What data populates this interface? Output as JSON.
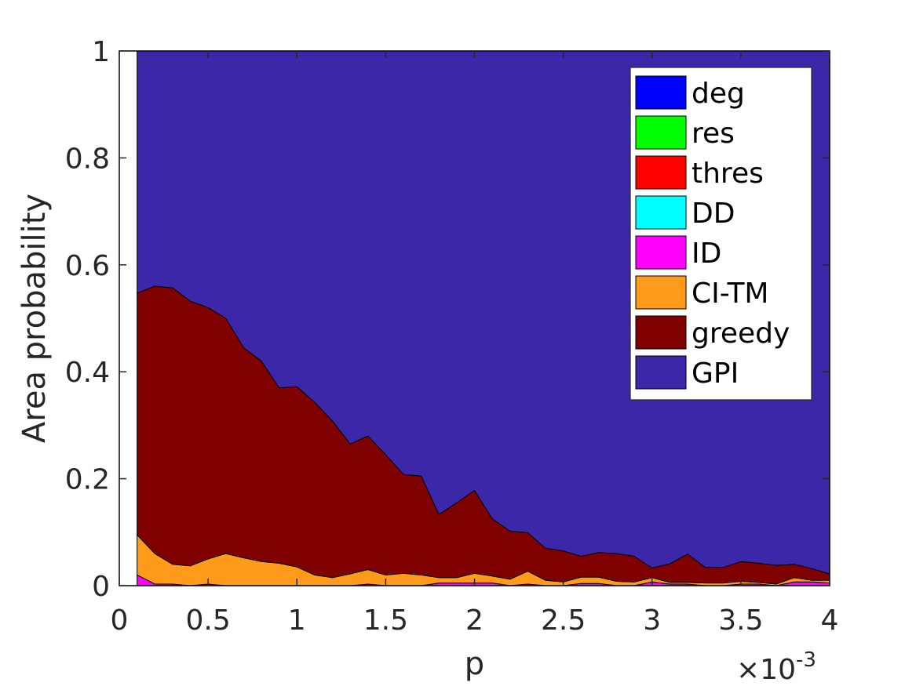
{
  "chart_data": {
    "type": "area",
    "stacked": true,
    "xlabel": "p",
    "ylabel": "Area probability",
    "x_exponent_label": "×10",
    "x_exponent_power": "-3",
    "xlim": [
      0,
      4
    ],
    "ylim": [
      0,
      1
    ],
    "x_ticks": [
      0,
      0.5,
      1,
      1.5,
      2,
      2.5,
      3,
      3.5,
      4
    ],
    "x_tick_labels": [
      "0",
      "0.5",
      "1",
      "1.5",
      "2",
      "2.5",
      "3",
      "3.5",
      "4"
    ],
    "y_ticks": [
      0,
      0.2,
      0.4,
      0.6,
      0.8,
      1
    ],
    "y_tick_labels": [
      "0",
      "0.2",
      "0.4",
      "0.6",
      "0.8",
      "1"
    ],
    "grid": false,
    "legend_position": "top-right",
    "x": [
      0.1,
      0.2,
      0.3,
      0.4,
      0.5,
      0.6,
      0.7,
      0.8,
      0.9,
      1.0,
      1.1,
      1.2,
      1.3,
      1.4,
      1.5,
      1.6,
      1.7,
      1.8,
      1.9,
      2.0,
      2.1,
      2.2,
      2.3,
      2.4,
      2.5,
      2.6,
      2.7,
      2.8,
      2.9,
      3.0,
      3.1,
      3.2,
      3.3,
      3.4,
      3.5,
      3.6,
      3.7,
      3.8,
      3.9,
      4.0
    ],
    "series": [
      {
        "name": "deg",
        "color": "#0000ff",
        "values": [
          0,
          0,
          0,
          0,
          0,
          0,
          0,
          0,
          0,
          0,
          0,
          0,
          0,
          0,
          0,
          0,
          0,
          0,
          0,
          0,
          0,
          0,
          0,
          0,
          0,
          0,
          0,
          0,
          0,
          0,
          0,
          0,
          0,
          0,
          0,
          0,
          0,
          0,
          0,
          0
        ]
      },
      {
        "name": "res",
        "color": "#00ff00",
        "values": [
          0,
          0,
          0,
          0,
          0,
          0,
          0,
          0,
          0,
          0,
          0,
          0,
          0,
          0,
          0,
          0,
          0,
          0,
          0,
          0,
          0,
          0,
          0,
          0,
          0,
          0,
          0,
          0,
          0,
          0,
          0,
          0,
          0,
          0,
          0,
          0,
          0,
          0,
          0,
          0
        ]
      },
      {
        "name": "thres",
        "color": "#ff0000",
        "values": [
          0,
          0,
          0,
          0,
          0,
          0,
          0,
          0,
          0,
          0,
          0,
          0,
          0,
          0,
          0,
          0,
          0,
          0,
          0,
          0,
          0,
          0,
          0,
          0,
          0,
          0,
          0,
          0,
          0,
          0,
          0,
          0,
          0,
          0,
          0,
          0,
          0,
          0,
          0,
          0
        ]
      },
      {
        "name": "DD",
        "color": "#00ffff",
        "values": [
          0,
          0,
          0,
          0,
          0,
          0,
          0,
          0,
          0,
          0,
          0,
          0,
          0,
          0,
          0,
          0,
          0,
          0,
          0,
          0,
          0,
          0,
          0,
          0,
          0,
          0,
          0,
          0,
          0,
          0,
          0,
          0,
          0,
          0,
          0,
          0,
          0,
          0,
          0,
          0
        ]
      },
      {
        "name": "ID",
        "color": "#ff00ff",
        "values": [
          0.02,
          0.003,
          0.003,
          0,
          0.003,
          0,
          0,
          0,
          0,
          0,
          0,
          0,
          0,
          0.003,
          0,
          0,
          0,
          0.005,
          0.005,
          0.005,
          0.005,
          0,
          0.003,
          0,
          0,
          0.004,
          0.004,
          0,
          0,
          0.007,
          0.003,
          0.003,
          0,
          0,
          0.003,
          0.003,
          0,
          0.007,
          0.007,
          0.005
        ]
      },
      {
        "name": "CI-TM",
        "color": "#ff9a1a",
        "values": [
          0.075,
          0.057,
          0.037,
          0.037,
          0.047,
          0.06,
          0.052,
          0.045,
          0.042,
          0.035,
          0.02,
          0.015,
          0.022,
          0.027,
          0.02,
          0.023,
          0.02,
          0.01,
          0.01,
          0.018,
          0.013,
          0.012,
          0.024,
          0.01,
          0.007,
          0.012,
          0.012,
          0.008,
          0.007,
          0.008,
          0.003,
          0.003,
          0.005,
          0.005,
          0.005,
          0.003,
          0.003,
          0.008,
          0.003,
          0.005
        ]
      },
      {
        "name": "greedy",
        "color": "#800000",
        "values": [
          0.452,
          0.5,
          0.517,
          0.495,
          0.47,
          0.44,
          0.393,
          0.375,
          0.328,
          0.337,
          0.323,
          0.293,
          0.243,
          0.25,
          0.225,
          0.185,
          0.185,
          0.118,
          0.14,
          0.155,
          0.107,
          0.09,
          0.072,
          0.06,
          0.058,
          0.039,
          0.046,
          0.052,
          0.048,
          0.018,
          0.035,
          0.053,
          0.029,
          0.029,
          0.037,
          0.036,
          0.035,
          0.025,
          0.022,
          0.012
        ]
      },
      {
        "name": "GPI",
        "color": "#3b27a8",
        "values": [
          0.453,
          0.44,
          0.443,
          0.468,
          0.48,
          0.5,
          0.555,
          0.58,
          0.63,
          0.628,
          0.657,
          0.692,
          0.735,
          0.72,
          0.755,
          0.792,
          0.795,
          0.867,
          0.845,
          0.822,
          0.875,
          0.898,
          0.901,
          0.93,
          0.935,
          0.945,
          0.938,
          0.94,
          0.945,
          0.967,
          0.959,
          0.941,
          0.966,
          0.966,
          0.955,
          0.958,
          0.962,
          0.96,
          0.968,
          0.978
        ]
      }
    ]
  }
}
